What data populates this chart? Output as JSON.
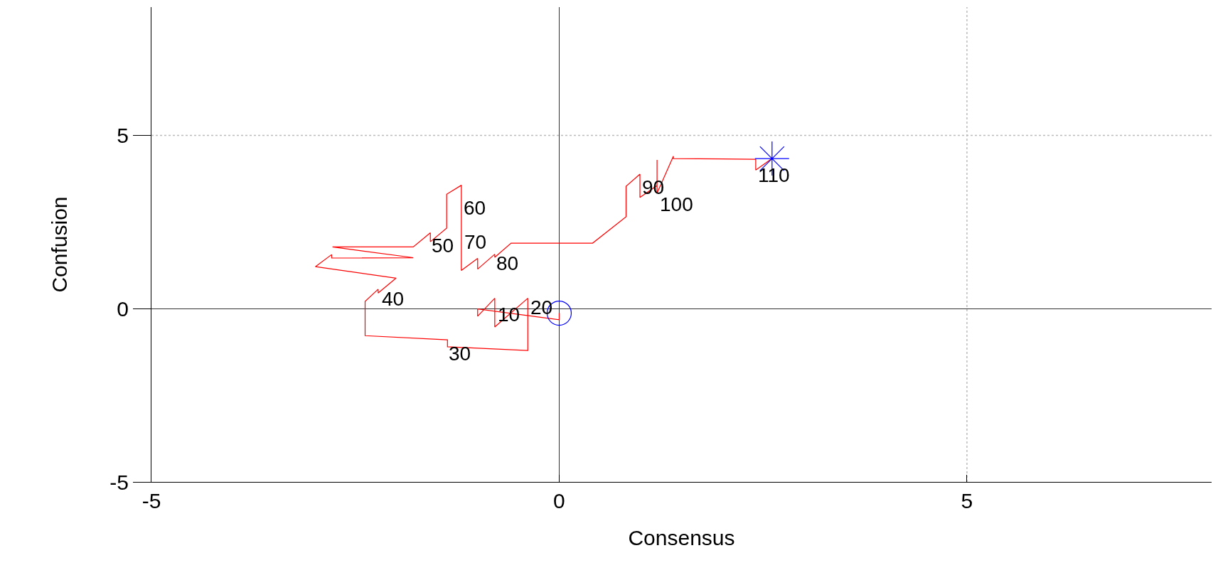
{
  "chart_data": {
    "type": "line",
    "xlabel": "Consensus",
    "ylabel": "Confusion",
    "xlim": [
      -5,
      8
    ],
    "ylim": [
      -5,
      8.7
    ],
    "xticks": [
      -5,
      0,
      5
    ],
    "yticks": [
      -5,
      0,
      5
    ],
    "grid": true,
    "series": [
      {
        "color": "#ff0000",
        "marker": "none",
        "x": [
          0,
          0,
          -1.0,
          -1.0,
          -0.79,
          -0.79,
          -0.385,
          -0.385,
          -1.37,
          -1.37,
          -2.38,
          -2.38,
          -2.22,
          -2.22,
          -2.0,
          -2.99,
          -2.79,
          -2.79,
          -1.79,
          -2.78,
          -1.79,
          -1.58,
          -1.58,
          -1.38,
          -1.38,
          -1.38,
          -1.2,
          -1.2,
          -1.0,
          -1.0,
          -0.79,
          -0.79,
          -0.59,
          0.41,
          0.82,
          0.82,
          0.99,
          0.99,
          1.2,
          1.2,
          1.2,
          1.4,
          1.4,
          2.41,
          2.41,
          2.61
        ],
        "values": [
          -0.13,
          -0.32,
          -0.01,
          -0.22,
          0.3,
          -0.53,
          0.3,
          -1.21,
          -1.1,
          -0.9,
          -0.78,
          0.21,
          0.56,
          0.45,
          0.88,
          1.21,
          1.56,
          1.46,
          1.47,
          1.78,
          1.78,
          2.19,
          1.93,
          2.32,
          3.2,
          3.3,
          3.56,
          1.1,
          1.45,
          1.14,
          1.57,
          1.48,
          1.89,
          1.89,
          2.65,
          3.53,
          3.88,
          3.21,
          3.55,
          4.29,
          3.33,
          4.4,
          4.33,
          4.31,
          4.0,
          4.33
        ]
      },
      {
        "type": "scatter",
        "color": "#0000ff",
        "marker": "circle",
        "x": [
          0
        ],
        "values": [
          -0.13
        ]
      },
      {
        "type": "scatter",
        "color": "#0000ff",
        "marker": "cross",
        "x": [
          2.61
        ],
        "values": [
          4.33
        ]
      }
    ],
    "annotations": [
      {
        "text": "10",
        "x": -0.77,
        "y": 0.19
      },
      {
        "text": "20",
        "x": -0.37,
        "y": 0.39
      },
      {
        "text": "30",
        "x": -1.37,
        "y": -0.93
      },
      {
        "text": "40",
        "x": -2.19,
        "y": 0.65
      },
      {
        "text": "50",
        "x": -1.58,
        "y": 2.17
      },
      {
        "text": "60",
        "x": -1.19,
        "y": 3.27
      },
      {
        "text": "70",
        "x": -1.18,
        "y": 2.29
      },
      {
        "text": "80",
        "x": -0.79,
        "y": 1.66
      },
      {
        "text": "90",
        "x": 1.0,
        "y": 3.85
      },
      {
        "text": "100",
        "x": 1.22,
        "y": 3.37
      },
      {
        "text": "110",
        "x": 2.42,
        "y": 4.2
      }
    ]
  }
}
